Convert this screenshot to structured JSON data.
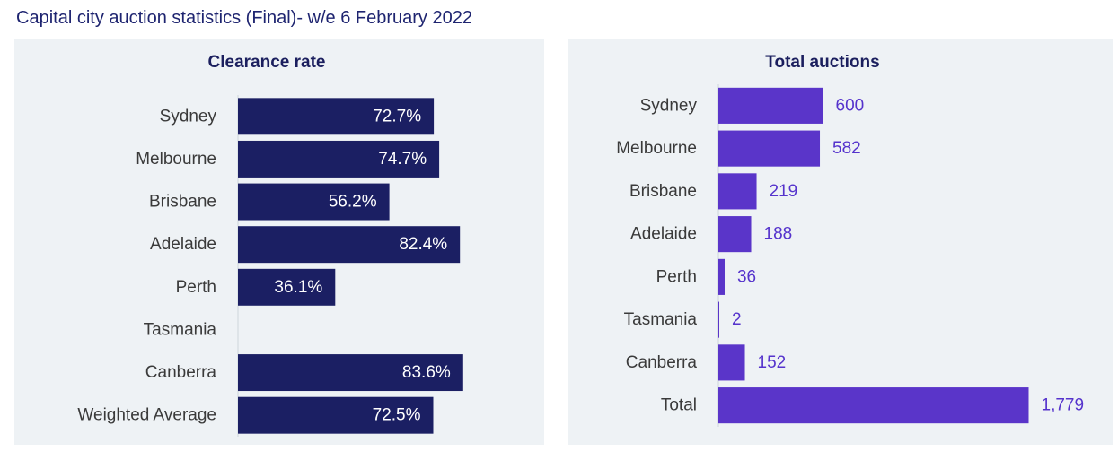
{
  "title": "Capital city auction statistics (Final)- w/e 6 February 2022",
  "colors": {
    "clearance_bar": "#1b1f63",
    "auctions_bar": "#5a35c9",
    "auctions_label": "#5533cc",
    "panel_bg": "#eef2f5"
  },
  "chart_data": [
    {
      "type": "bar",
      "orientation": "horizontal",
      "title": "Clearance rate",
      "categories": [
        "Sydney",
        "Melbourne",
        "Brisbane",
        "Adelaide",
        "Perth",
        "Tasmania",
        "Canberra",
        "Weighted Average"
      ],
      "values": [
        72.7,
        74.7,
        56.2,
        82.4,
        36.1,
        null,
        83.6,
        72.5
      ],
      "labels": [
        "72.7%",
        "74.7%",
        "56.2%",
        "82.4%",
        "36.1%",
        "",
        "83.6%",
        "72.5%"
      ],
      "xlim": [
        0,
        100
      ]
    },
    {
      "type": "bar",
      "orientation": "horizontal",
      "title": "Total auctions",
      "categories": [
        "Sydney",
        "Melbourne",
        "Brisbane",
        "Adelaide",
        "Perth",
        "Tasmania",
        "Canberra",
        "Total"
      ],
      "values": [
        600,
        582,
        219,
        188,
        36,
        2,
        152,
        1779
      ],
      "labels": [
        "600",
        "582",
        "219",
        "188",
        "36",
        "2",
        "152",
        "1,779"
      ],
      "xlim": [
        0,
        1900
      ]
    }
  ]
}
